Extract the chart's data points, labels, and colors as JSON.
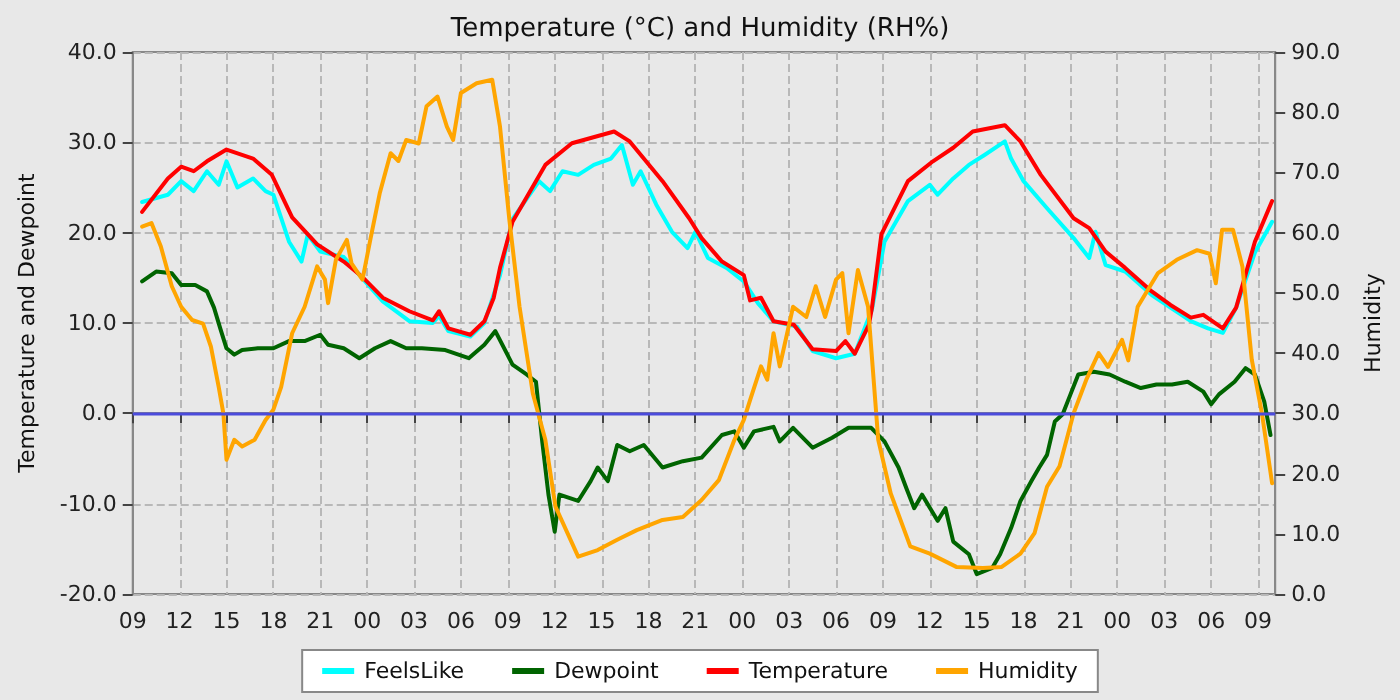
{
  "chart_data": {
    "type": "line",
    "title": "Temperature (°C) and Humidity (RH%)",
    "ylabel": "Temperature and Dewpoint",
    "y2label": "Humidity",
    "xlim": [
      9,
      82.1
    ],
    "xticks": [
      {
        "value": 9,
        "label": "09"
      },
      {
        "value": 12,
        "label": "12"
      },
      {
        "value": 15,
        "label": "15"
      },
      {
        "value": 18,
        "label": "18"
      },
      {
        "value": 21,
        "label": "21"
      },
      {
        "value": 24,
        "label": "00"
      },
      {
        "value": 27,
        "label": "03"
      },
      {
        "value": 30,
        "label": "06"
      },
      {
        "value": 33,
        "label": "09"
      },
      {
        "value": 36,
        "label": "12"
      },
      {
        "value": 39,
        "label": "15"
      },
      {
        "value": 42,
        "label": "18"
      },
      {
        "value": 45,
        "label": "21"
      },
      {
        "value": 48,
        "label": "00"
      },
      {
        "value": 51,
        "label": "03"
      },
      {
        "value": 54,
        "label": "06"
      },
      {
        "value": 57,
        "label": "09"
      },
      {
        "value": 60,
        "label": "12"
      },
      {
        "value": 63,
        "label": "15"
      },
      {
        "value": 66,
        "label": "18"
      },
      {
        "value": 69,
        "label": "21"
      },
      {
        "value": 72,
        "label": "00"
      },
      {
        "value": 75,
        "label": "03"
      },
      {
        "value": 78,
        "label": "06"
      },
      {
        "value": 81,
        "label": "09"
      }
    ],
    "ylim": [
      -20,
      40
    ],
    "yticks": [
      {
        "value": -20,
        "label": "-20.0"
      },
      {
        "value": -10,
        "label": "-10.0"
      },
      {
        "value": 0,
        "label": "0.0"
      },
      {
        "value": 10,
        "label": "10.0"
      },
      {
        "value": 20,
        "label": "20.0"
      },
      {
        "value": 30,
        "label": "30.0"
      },
      {
        "value": 40,
        "label": "40.0"
      }
    ],
    "y2lim": [
      0,
      90
    ],
    "y2ticks": [
      {
        "value": 0,
        "label": "0.0"
      },
      {
        "value": 10,
        "label": "10.0"
      },
      {
        "value": 20,
        "label": "20.0"
      },
      {
        "value": 30,
        "label": "30.0"
      },
      {
        "value": 40,
        "label": "40.0"
      },
      {
        "value": 50,
        "label": "50.0"
      },
      {
        "value": 60,
        "label": "60.0"
      },
      {
        "value": 70,
        "label": "70.0"
      },
      {
        "value": 80,
        "label": "80.0"
      },
      {
        "value": 90,
        "label": "90.0"
      }
    ],
    "grid": true,
    "legend": "bottom",
    "marker": "none",
    "line_style": "solid",
    "ref_lines": [
      {
        "axis": "y",
        "value": 0,
        "color": "#4b4bdc"
      }
    ],
    "series": [
      {
        "name": "FeelsLike",
        "color": "#00ffff",
        "x": [
          9.6,
          11.25,
          12.1,
          12.9,
          13.75,
          14.5,
          15,
          15.7,
          16.7,
          17.5,
          18,
          19,
          19.8,
          20.2,
          21,
          22.5,
          25,
          26.7,
          28.2,
          28.6,
          29.2,
          30.6,
          31.5,
          32.5,
          33.3,
          35,
          35.7,
          36.5,
          37.5,
          38.5,
          39.6,
          40.3,
          41,
          41.5,
          42.5,
          43.5,
          44.5,
          45,
          45.8,
          47,
          48.1,
          49,
          50,
          51.5,
          52.5,
          54,
          55.2,
          56.3,
          57.1,
          58.6,
          60,
          60.5,
          61.5,
          62.5,
          63.5,
          64.8,
          65.2,
          66,
          67.5,
          69.2,
          70.2,
          70.6,
          71.25,
          72.5,
          74.2,
          75.4,
          76.7,
          77.8,
          78.75,
          79.6,
          80.8,
          81.9
        ],
        "values": [
          23.4,
          24.2,
          25.7,
          24.6,
          26.8,
          25.3,
          27.9,
          25,
          26,
          24.6,
          24.2,
          19,
          16.8,
          19.8,
          17.9,
          17.3,
          12.4,
          10.2,
          10,
          10.8,
          9.1,
          8.5,
          10,
          15.3,
          21.5,
          25.7,
          24.6,
          26.8,
          26.4,
          27.5,
          28.2,
          29.7,
          25.3,
          26.8,
          23.1,
          20.1,
          18.3,
          20.1,
          17.2,
          16.1,
          14.6,
          12.2,
          10.2,
          9.6,
          6.9,
          6.1,
          6.6,
          11.5,
          19,
          23.5,
          25.3,
          24.2,
          26,
          27.5,
          28.6,
          30.1,
          28.2,
          25.7,
          22.7,
          19.4,
          17.2,
          20.1,
          16.4,
          15.7,
          13.1,
          11.7,
          10.2,
          9.4,
          8.9,
          11.7,
          17.8,
          21.2
        ]
      },
      {
        "name": "Dewpoint",
        "color": "#006400",
        "x": [
          9.6,
          10.5,
          11.5,
          12.1,
          13,
          13.75,
          14.2,
          14.6,
          15,
          15.5,
          16,
          17,
          18,
          19,
          20,
          21,
          21.5,
          22.5,
          23.5,
          24.5,
          25.5,
          26.5,
          27.5,
          29,
          30.5,
          31.5,
          32.2,
          33.3,
          34.2,
          34.8,
          35.2,
          35.6,
          36,
          36.3,
          37.5,
          38.3,
          38.75,
          39.4,
          40,
          40.8,
          41.7,
          42.9,
          44.2,
          45.4,
          46.7,
          47.5,
          48.1,
          48.75,
          50,
          50.4,
          51.25,
          52.5,
          53.75,
          54.8,
          56.25,
          57.1,
          58,
          58.5,
          59,
          59.5,
          60.5,
          61,
          61.5,
          62.5,
          63,
          64,
          64.5,
          65.2,
          65.8,
          66.5,
          67,
          67.5,
          68,
          68.5,
          69,
          69.5,
          70.5,
          71.5,
          72.5,
          73.5,
          74.5,
          75.5,
          76.5,
          77.5,
          78,
          78.5,
          79.5,
          80.2,
          80.8,
          81.4,
          81.8
        ],
        "values": [
          14.6,
          15.7,
          15.5,
          14.2,
          14.2,
          13.5,
          11.7,
          9.4,
          7.2,
          6.5,
          7,
          7.2,
          7.2,
          8,
          8,
          8.7,
          7.6,
          7.2,
          6.1,
          7.2,
          8,
          7.2,
          7.2,
          7,
          6.1,
          7.6,
          9.1,
          5.4,
          4.3,
          3.5,
          -3.1,
          -9,
          -13.1,
          -9,
          -9.7,
          -7.5,
          -6,
          -7.5,
          -3.5,
          -4.2,
          -3.5,
          -6,
          -5.3,
          -4.9,
          -2.4,
          -2,
          -3.8,
          -2,
          -1.5,
          -3.1,
          -1.6,
          -3.8,
          -2.7,
          -1.6,
          -1.6,
          -3.1,
          -6,
          -8.3,
          -10.5,
          -9,
          -11.9,
          -10.5,
          -14.2,
          -15.6,
          -17.8,
          -17.1,
          -15.6,
          -12.7,
          -9.7,
          -7.5,
          -6,
          -4.6,
          -0.9,
          -0.1,
          2.1,
          4.3,
          4.6,
          4.3,
          3.5,
          2.8,
          3.2,
          3.2,
          3.5,
          2.4,
          1,
          2.1,
          3.5,
          5,
          4.3,
          1.3,
          -2.4
        ]
      },
      {
        "name": "Temperature",
        "color": "#ff0000",
        "x": [
          9.6,
          11.25,
          12.1,
          12.9,
          13.75,
          15,
          16.7,
          17.9,
          19.2,
          20.8,
          22.5,
          23.75,
          25,
          26.7,
          28.2,
          28.6,
          29.2,
          30.6,
          31.5,
          32.1,
          32.5,
          33.3,
          35.4,
          37.1,
          39.8,
          40.8,
          42.9,
          44.6,
          45.4,
          46.7,
          48.1,
          48.5,
          49.2,
          50,
          51.3,
          52.5,
          54,
          54.6,
          55.2,
          56.1,
          56.3,
          56.9,
          58.6,
          60.2,
          61.5,
          62.75,
          64.8,
          65.8,
          67.1,
          69.2,
          70.2,
          71.25,
          72.5,
          74.2,
          75.4,
          76.7,
          77.5,
          78.75,
          79.6,
          80.8,
          81.9
        ],
        "values": [
          22.3,
          26,
          27.3,
          26.8,
          27.9,
          29.2,
          28.2,
          26.4,
          21.7,
          18.7,
          16.8,
          15,
          12.8,
          11.3,
          10.3,
          11.3,
          9.4,
          8.7,
          10.2,
          12.8,
          16.1,
          21.2,
          27.5,
          29.9,
          31.2,
          30.1,
          25.7,
          21.6,
          19.4,
          16.8,
          15.3,
          12.5,
          12.8,
          10.2,
          9.8,
          7.1,
          6.9,
          8,
          6.6,
          9.8,
          11.7,
          19.8,
          25.7,
          27.9,
          29.4,
          31.2,
          31.9,
          30.1,
          26.4,
          21.6,
          20.5,
          17.9,
          16.1,
          13.5,
          12,
          10.6,
          10.9,
          9.4,
          11.7,
          19,
          23.5
        ]
      },
      {
        "name": "Humidity",
        "color": "#ffa500",
        "axis": "y2",
        "x": [
          9.6,
          10.2,
          10.8,
          11.5,
          12.1,
          12.8,
          13.5,
          14,
          14.5,
          14.8,
          15,
          15.5,
          16,
          16.8,
          17.5,
          18,
          18.5,
          19.2,
          20,
          20.8,
          21.3,
          21.5,
          22,
          22.7,
          23,
          23.7,
          24.2,
          24.8,
          25.5,
          26,
          26.5,
          27.3,
          27.8,
          28.5,
          29.1,
          29.5,
          30,
          31,
          32,
          32.5,
          33.1,
          33.75,
          34.6,
          35.4,
          36.05,
          37.5,
          38.75,
          40,
          41.25,
          42.9,
          44.2,
          45.4,
          46.5,
          47.5,
          48.1,
          48.5,
          49.2,
          49.6,
          50,
          50.4,
          51.25,
          52.1,
          52.7,
          53.3,
          54,
          54.4,
          54.8,
          55.4,
          56.05,
          56.7,
          57.5,
          58.75,
          60,
          61.7,
          63.4,
          64.6,
          65.8,
          66.7,
          67.5,
          68.3,
          69.2,
          70,
          70.8,
          71.4,
          72.3,
          72.7,
          73.3,
          74.6,
          75.8,
          77.1,
          77.9,
          78.3,
          78.7,
          79.4,
          80,
          80.6,
          81.25,
          81.9
        ],
        "values": [
          61,
          61.6,
          57.7,
          51.1,
          47.7,
          45.5,
          44.9,
          41.1,
          34.4,
          30,
          22.3,
          25.6,
          24.5,
          25.6,
          28.9,
          30.6,
          34.4,
          43.3,
          47.7,
          54.4,
          52.2,
          48.3,
          55.5,
          58.8,
          54.9,
          52.2,
          58.8,
          66.5,
          73.2,
          71.9,
          75.4,
          74.8,
          81,
          82.6,
          77.6,
          75.4,
          83.2,
          84.8,
          85.4,
          77.6,
          62.1,
          47.7,
          33.3,
          25.6,
          14.5,
          6.2,
          7.3,
          9,
          10.6,
          12.3,
          12.8,
          15.6,
          18.9,
          25.6,
          28.9,
          32.2,
          37.8,
          35.6,
          43.3,
          37.8,
          47.7,
          46,
          51.1,
          46,
          52.2,
          53.3,
          43.3,
          53.8,
          47.7,
          25.6,
          16.7,
          7.9,
          6.7,
          4.5,
          4.3,
          4.5,
          6.7,
          10.1,
          17.8,
          21.2,
          30,
          35.5,
          40,
          37.7,
          42.2,
          38.8,
          47.7,
          53.3,
          55.5,
          57.1,
          56.5,
          51.6,
          60.5,
          60.5,
          54.4,
          38.9,
          30,
          18.4
        ]
      }
    ]
  }
}
